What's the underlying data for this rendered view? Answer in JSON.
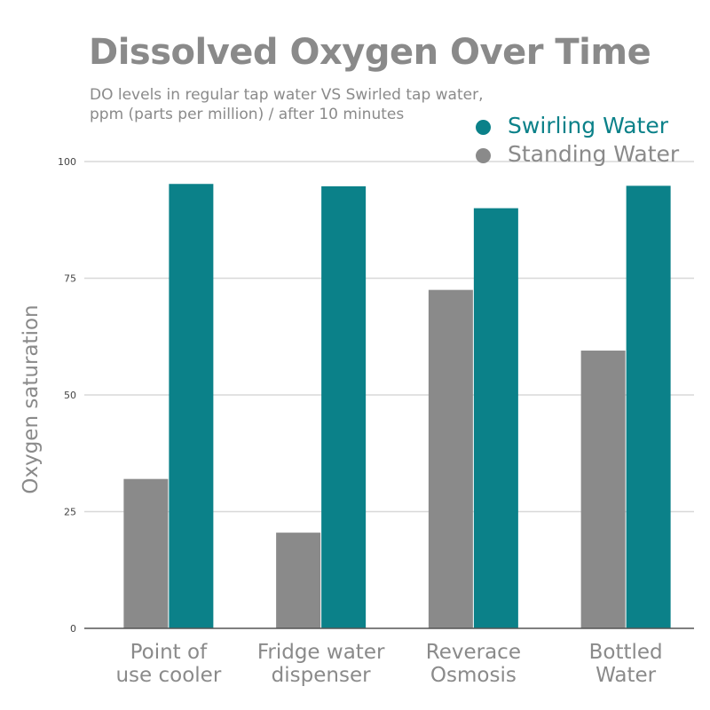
{
  "chart_data": {
    "type": "bar",
    "title": "Dissolved Oxygen Over Time",
    "subtitle_lines": [
      "DO levels in regular tap water VS Swirled tap water,",
      "ppm (parts per million) / after 10 minutes"
    ],
    "xlabel": "",
    "ylabel": "Oxygen saturation",
    "ylim": [
      0,
      100
    ],
    "yticks": [
      0,
      25,
      50,
      75,
      100
    ],
    "grid": true,
    "legend_position": "top-right",
    "categories": [
      [
        "Point of",
        "use cooler"
      ],
      [
        "Fridge water",
        "dispenser"
      ],
      [
        "Reverace",
        "Osmosis"
      ],
      [
        "Bottled",
        "Water"
      ]
    ],
    "series": [
      {
        "name": "Standing Water",
        "color": "#8a8a8a",
        "values": [
          32,
          20.5,
          72.5,
          59.5
        ]
      },
      {
        "name": "Swirling Water",
        "color": "#0b8189",
        "values": [
          95.2,
          94.7,
          90,
          94.8
        ]
      }
    ],
    "legend_order": [
      1,
      0
    ],
    "colors": {
      "text": "#8a8a8a",
      "grid": "#d8d8d8",
      "axis": "#555555"
    }
  }
}
